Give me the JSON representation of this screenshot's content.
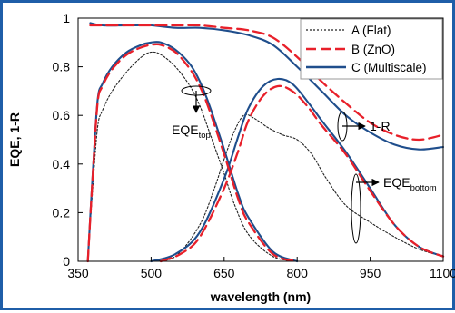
{
  "chart_data": {
    "type": "line",
    "xlabel": "wavelength (nm)",
    "ylabel": "EQE, 1-R",
    "xlim": [
      350,
      1100
    ],
    "ylim": [
      0,
      1
    ],
    "xticks": [
      "350",
      "500",
      "650",
      "800",
      "950",
      "1100"
    ],
    "yticks": [
      "0",
      "0.2",
      "0.4",
      "0.6",
      "0.8",
      "1"
    ],
    "grid": false,
    "legend_position": "top-right",
    "legend": [
      {
        "label": "A (Flat)",
        "style": "dotted",
        "color": "#222222"
      },
      {
        "label": "B (ZnO)",
        "style": "dashed",
        "color": "#e8202a"
      },
      {
        "label": "C (Multiscale)",
        "style": "solid",
        "color": "#1f4e8c"
      }
    ],
    "annotations": {
      "top_main": "EQE",
      "top_sub": "top",
      "bottom_main": "EQE",
      "bottom_sub": "bottom",
      "reflect": "1-R"
    },
    "series": [
      {
        "name": "A (Flat)",
        "group": "EQE_top",
        "x": [
          370,
          380,
          390,
          400,
          420,
          450,
          480,
          500,
          520,
          550,
          580,
          600,
          620,
          650,
          670,
          700,
          750,
          800
        ],
        "y": [
          0,
          0.3,
          0.55,
          0.62,
          0.7,
          0.78,
          0.84,
          0.86,
          0.85,
          0.8,
          0.72,
          0.64,
          0.53,
          0.36,
          0.24,
          0.11,
          0.02,
          0
        ]
      },
      {
        "name": "B (ZnO)",
        "group": "EQE_top",
        "x": [
          370,
          380,
          390,
          400,
          420,
          450,
          480,
          500,
          520,
          550,
          580,
          600,
          620,
          650,
          680,
          700,
          750,
          800
        ],
        "y": [
          0,
          0.35,
          0.65,
          0.72,
          0.79,
          0.85,
          0.88,
          0.89,
          0.89,
          0.86,
          0.79,
          0.72,
          0.62,
          0.44,
          0.25,
          0.16,
          0.03,
          0
        ]
      },
      {
        "name": "C (Multiscale)",
        "group": "EQE_top",
        "x": [
          370,
          380,
          390,
          400,
          420,
          450,
          480,
          500,
          520,
          550,
          580,
          600,
          620,
          650,
          680,
          700,
          750,
          800
        ],
        "y": [
          0,
          0.36,
          0.66,
          0.73,
          0.8,
          0.86,
          0.89,
          0.9,
          0.9,
          0.87,
          0.81,
          0.74,
          0.64,
          0.46,
          0.27,
          0.18,
          0.04,
          0
        ]
      },
      {
        "name": "A (Flat)",
        "group": "EQE_bottom",
        "x": [
          500,
          550,
          600,
          630,
          650,
          670,
          690,
          710,
          740,
          770,
          800,
          830,
          860,
          900,
          950,
          1000,
          1050,
          1100
        ],
        "y": [
          0,
          0.02,
          0.15,
          0.3,
          0.42,
          0.53,
          0.6,
          0.59,
          0.55,
          0.52,
          0.5,
          0.44,
          0.34,
          0.23,
          0.16,
          0.1,
          0.05,
          0.02
        ]
      },
      {
        "name": "B (ZnO)",
        "group": "EQE_bottom",
        "x": [
          520,
          560,
          600,
          650,
          680,
          700,
          730,
          760,
          790,
          820,
          850,
          900,
          950,
          1000,
          1050,
          1100
        ],
        "y": [
          0,
          0.03,
          0.1,
          0.3,
          0.46,
          0.58,
          0.68,
          0.72,
          0.7,
          0.64,
          0.56,
          0.44,
          0.29,
          0.15,
          0.06,
          0.02
        ]
      },
      {
        "name": "C (Multiscale)",
        "group": "EQE_bottom",
        "x": [
          500,
          550,
          600,
          650,
          680,
          700,
          730,
          760,
          790,
          820,
          850,
          900,
          950,
          1000,
          1050,
          1100
        ],
        "y": [
          0,
          0.03,
          0.12,
          0.34,
          0.52,
          0.63,
          0.72,
          0.75,
          0.73,
          0.66,
          0.58,
          0.45,
          0.3,
          0.15,
          0.06,
          0.02
        ]
      },
      {
        "name": "B (ZnO)",
        "group": "1-R",
        "x": [
          375,
          400,
          450,
          500,
          550,
          600,
          650,
          700,
          750,
          800,
          850,
          900,
          950,
          1000,
          1050,
          1100
        ],
        "y": [
          0.97,
          0.97,
          0.97,
          0.97,
          0.97,
          0.97,
          0.96,
          0.95,
          0.92,
          0.84,
          0.74,
          0.65,
          0.57,
          0.52,
          0.5,
          0.52
        ]
      },
      {
        "name": "C (Multiscale)",
        "group": "1-R",
        "x": [
          375,
          400,
          450,
          500,
          550,
          600,
          650,
          700,
          750,
          800,
          850,
          900,
          950,
          1000,
          1050,
          1100
        ],
        "y": [
          0.98,
          0.97,
          0.97,
          0.97,
          0.96,
          0.96,
          0.95,
          0.93,
          0.89,
          0.8,
          0.7,
          0.6,
          0.53,
          0.48,
          0.46,
          0.47
        ]
      }
    ]
  }
}
